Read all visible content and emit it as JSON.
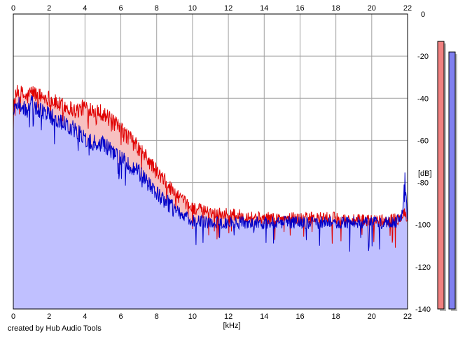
{
  "chart_data": {
    "type": "area",
    "title": "",
    "xlabel": "[kHz]",
    "ylabel": "[dB]",
    "xlim": [
      0,
      22
    ],
    "ylim": [
      -140,
      0
    ],
    "x_ticks": [
      0,
      2,
      4,
      6,
      8,
      10,
      12,
      14,
      16,
      18,
      20,
      22
    ],
    "x_tick_labels": [
      "0",
      "2",
      "4",
      "6",
      "8",
      "10",
      "12",
      "14",
      "16",
      "18",
      "20",
      "22"
    ],
    "y_ticks": [
      0,
      -20,
      -40,
      -60,
      -80,
      -100,
      -120,
      -140
    ],
    "y_tick_labels": [
      "0",
      "-20",
      "-40",
      "-60",
      "-80",
      "-100",
      "-120",
      "-140"
    ],
    "grid": true,
    "x_tick_position": "top-and-bottom",
    "y_tick_position": "right",
    "series": [
      {
        "color": "#e00000",
        "fill": "#f7c0c0",
        "x": [
          0,
          0.25,
          0.5,
          0.75,
          1,
          1.5,
          2,
          2.5,
          3,
          3.5,
          4,
          4.5,
          5,
          5.5,
          6,
          6.5,
          7,
          7.5,
          8,
          8.5,
          9,
          9.5,
          10,
          11,
          12,
          13,
          14,
          15,
          16,
          17,
          18,
          19,
          20,
          21,
          21.5,
          21.7,
          21.85,
          22
        ],
        "values": [
          -42,
          -37,
          -38,
          -40,
          -37,
          -39,
          -40,
          -43,
          -44,
          -46,
          -44,
          -45,
          -47,
          -51,
          -55,
          -59,
          -64,
          -69,
          -75,
          -80,
          -85,
          -89,
          -92,
          -94,
          -95,
          -96,
          -97,
          -97,
          -97,
          -97,
          -97,
          -98,
          -98,
          -98,
          -97,
          -95,
          -94,
          -99
        ]
      },
      {
        "color": "#0000c8",
        "fill": "#c0c0ff",
        "x": [
          0,
          0.25,
          0.5,
          0.75,
          1,
          1.5,
          2,
          2.5,
          3,
          3.5,
          4,
          4.5,
          5,
          5.5,
          6,
          6.5,
          7,
          7.5,
          8,
          8.5,
          9,
          9.5,
          10,
          11,
          12,
          13,
          14,
          15,
          16,
          17,
          18,
          19,
          20,
          21,
          21.5,
          21.7,
          21.85,
          22
        ],
        "values": [
          -47,
          -42,
          -44,
          -46,
          -42,
          -46,
          -48,
          -51,
          -53,
          -55,
          -59,
          -61,
          -62,
          -65,
          -68,
          -72,
          -75,
          -80,
          -85,
          -89,
          -93,
          -96,
          -98,
          -99,
          -99,
          -99,
          -99,
          -99,
          -99,
          -99,
          -99,
          -99,
          -99,
          -99,
          -98,
          -95,
          -76,
          -99
        ]
      }
    ]
  },
  "level_meters": {
    "meter_1": {
      "color": "#f08080",
      "level_db": -13
    },
    "meter_2": {
      "color": "#8080f0",
      "level_db": -18
    },
    "range_db": [
      -140,
      0
    ]
  },
  "footer": {
    "credit": "created by Hub Audio Tools"
  }
}
